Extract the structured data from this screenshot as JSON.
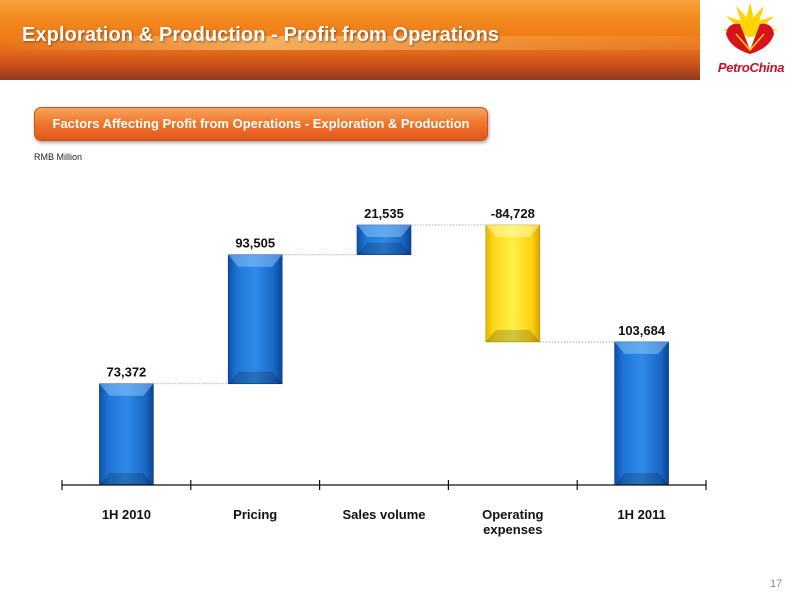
{
  "header": {
    "title": "Exploration & Production - Profit from Operations",
    "logo_text": "PetroChina"
  },
  "subtitle": "Factors Affecting Profit from Operations - Exploration & Production",
  "unit_label": "RMB Million",
  "page_number": "17",
  "colors": {
    "increase": "#1f77d6",
    "decrease": "#ffd81a",
    "accent": "#f07a28"
  },
  "chart_data": {
    "type": "bar",
    "subtype": "waterfall",
    "categories": [
      "1H 2010",
      "Pricing",
      "Sales volume",
      "Operating expenses",
      "1H 2011"
    ],
    "tick_labels": [
      [
        "1H 2010"
      ],
      [
        "Pricing"
      ],
      [
        "Sales volume"
      ],
      [
        "Operating",
        "expenses"
      ],
      [
        "1H 2011"
      ]
    ],
    "values": [
      73372,
      93505,
      21535,
      -84728,
      103684
    ],
    "value_labels": [
      "73,372",
      "93,505",
      "21,535",
      "-84,728",
      "103,684"
    ],
    "kinds": [
      "total",
      "delta",
      "delta",
      "delta",
      "total"
    ],
    "title": "",
    "xlabel": "",
    "ylabel": "",
    "grid": false,
    "legend": "none"
  }
}
